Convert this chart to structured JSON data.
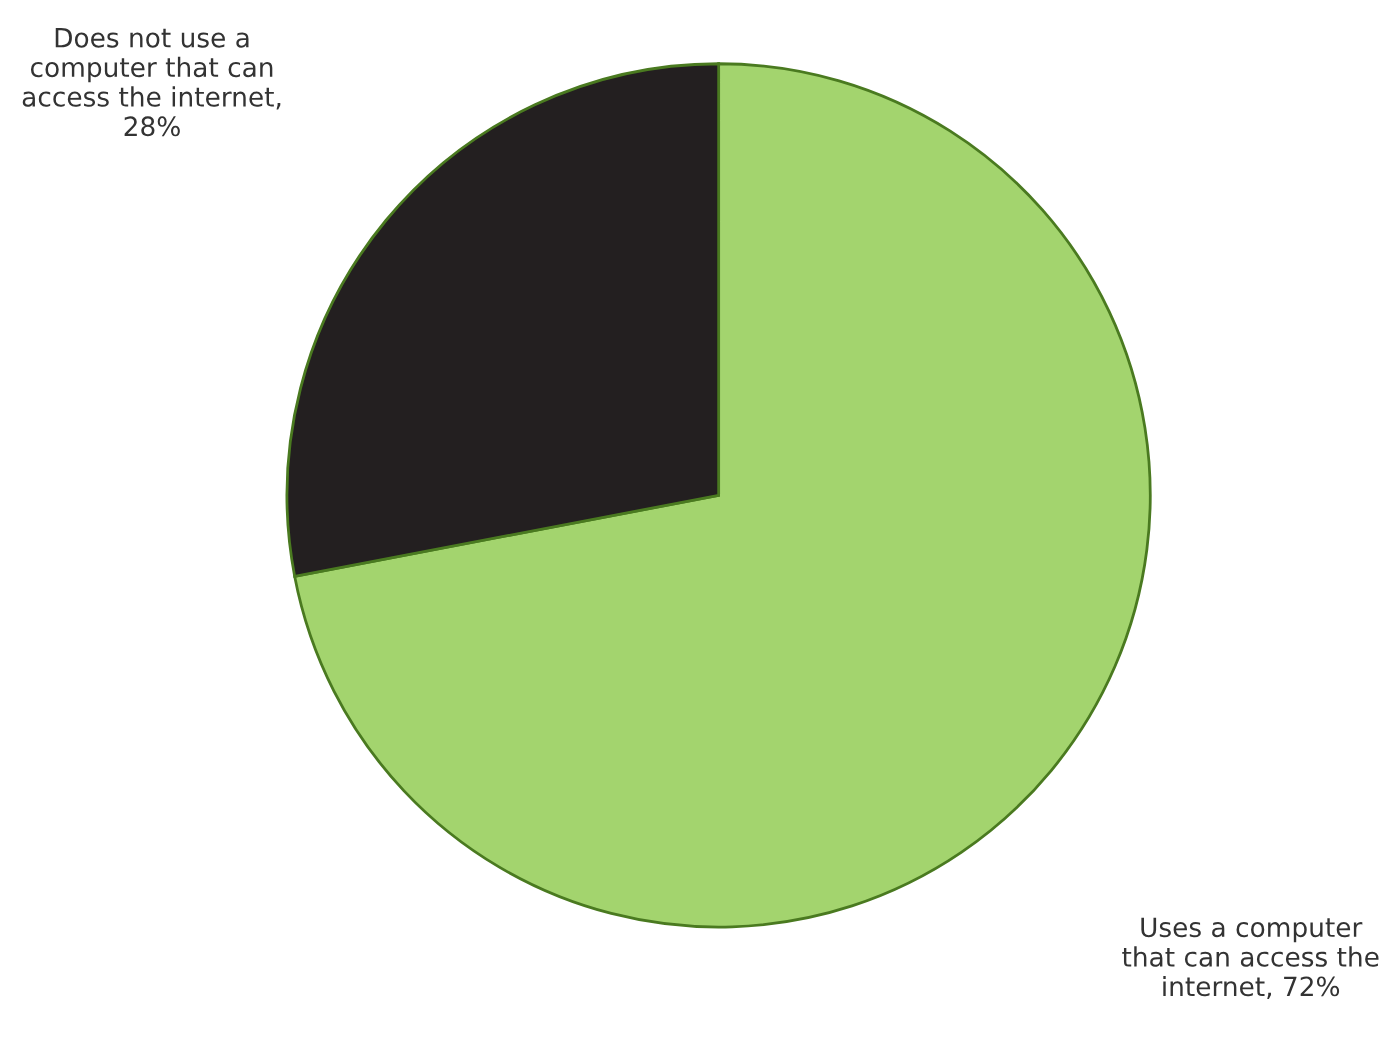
{
  "chart_data": {
    "type": "pie",
    "categories": [
      "Uses a computer that can access the internet, 72%",
      "Does not use a computer that can access the internet, 28%"
    ],
    "values": [
      72,
      28
    ],
    "colors": [
      "#a3d46e",
      "#231f20"
    ]
  }
}
